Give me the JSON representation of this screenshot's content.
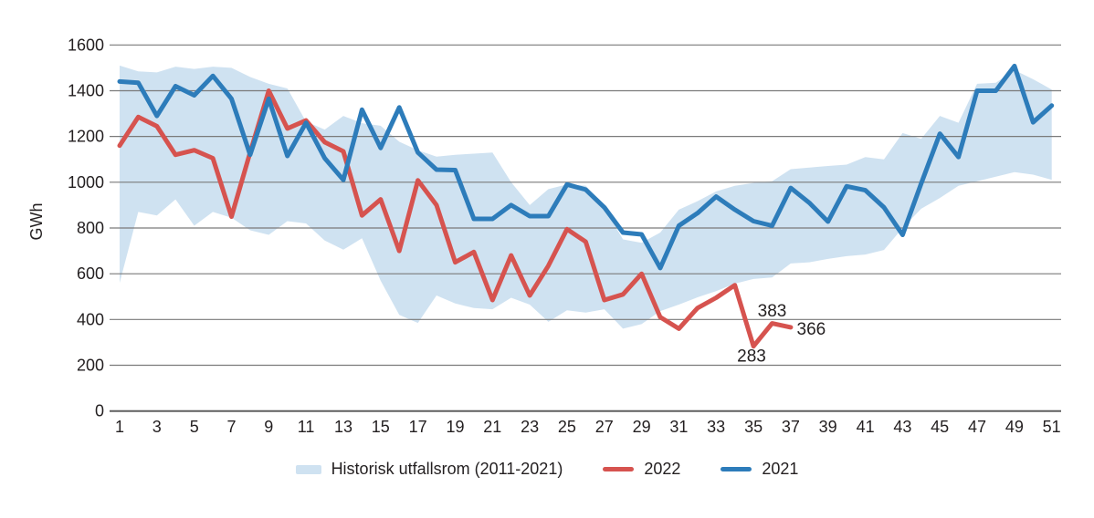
{
  "axes": {
    "y_label": "GWh",
    "y_ticks": [
      0,
      200,
      400,
      600,
      800,
      1000,
      1200,
      1400,
      1600
    ],
    "x_ticks": [
      1,
      3,
      5,
      7,
      9,
      11,
      13,
      15,
      17,
      19,
      21,
      23,
      25,
      27,
      29,
      31,
      33,
      35,
      37,
      39,
      41,
      43,
      45,
      47,
      49,
      51
    ]
  },
  "legend": {
    "items": [
      {
        "label": "Historisk utfallsrom (2011-2021)",
        "swatch": "band"
      },
      {
        "label": "2022",
        "swatch": "line-red"
      },
      {
        "label": "2021",
        "swatch": "line-blue"
      }
    ]
  },
  "colors": {
    "band": "#cfe2f1",
    "red_2022": "#d6534f",
    "blue_2021": "#2d7cba",
    "gridline": "#7a7a7a",
    "zero_line": "#5f5f5f",
    "text": "#231f20"
  },
  "chart_data": {
    "type": "line",
    "title": "",
    "xlabel": "",
    "ylabel": "GWh",
    "ylim": [
      0,
      1600
    ],
    "xlim": [
      1,
      51
    ],
    "grid": "horizontal",
    "legend_position": "bottom-center",
    "x": [
      1,
      2,
      3,
      4,
      5,
      6,
      7,
      8,
      9,
      10,
      11,
      12,
      13,
      14,
      15,
      16,
      17,
      18,
      19,
      20,
      21,
      22,
      23,
      24,
      25,
      26,
      27,
      28,
      29,
      30,
      31,
      32,
      33,
      34,
      35,
      36,
      37,
      38,
      39,
      40,
      41,
      42,
      43,
      44,
      45,
      46,
      47,
      48,
      49,
      50,
      51
    ],
    "series": [
      {
        "name": "Historisk utfallsrom (2011-2021)",
        "type": "band",
        "color": "#cfe2f1",
        "upper": [
          1510,
          1485,
          1480,
          1505,
          1495,
          1505,
          1500,
          1460,
          1430,
          1410,
          1265,
          1230,
          1290,
          1258,
          1247,
          1177,
          1140,
          1112,
          1120,
          1125,
          1130,
          1000,
          900,
          970,
          990,
          985,
          890,
          750,
          735,
          780,
          880,
          917,
          960,
          984,
          997,
          1004,
          1057,
          1064,
          1071,
          1077,
          1110,
          1100,
          1215,
          1190,
          1290,
          1260,
          1430,
          1435,
          1490,
          1450,
          1405
        ],
        "lower": [
          560,
          870,
          855,
          925,
          810,
          870,
          845,
          790,
          770,
          830,
          820,
          745,
          705,
          755,
          570,
          420,
          385,
          505,
          470,
          450,
          445,
          495,
          465,
          390,
          440,
          430,
          445,
          360,
          380,
          437,
          465,
          497,
          524,
          557,
          577,
          584,
          645,
          650,
          665,
          677,
          684,
          704,
          800,
          884,
          931,
          984,
          1004,
          1024,
          1044,
          1033,
          1011
        ]
      },
      {
        "name": "2022",
        "type": "line",
        "color": "#d6534f",
        "values": [
          1160,
          1285,
          1245,
          1120,
          1140,
          1105,
          850,
          1130,
          1400,
          1235,
          1270,
          1175,
          1135,
          855,
          925,
          700,
          1008,
          900,
          650,
          695,
          485,
          680,
          505,
          635,
          795,
          740,
          485,
          510,
          600,
          410,
          360,
          450,
          495,
          550,
          283,
          383,
          366
        ]
      },
      {
        "name": "2021",
        "type": "line",
        "color": "#2d7cba",
        "values": [
          1440,
          1435,
          1290,
          1420,
          1380,
          1465,
          1365,
          1120,
          1365,
          1115,
          1260,
          1105,
          1010,
          1317,
          1150,
          1327,
          1130,
          1055,
          1053,
          840,
          840,
          900,
          852,
          852,
          990,
          968,
          890,
          780,
          772,
          625,
          810,
          865,
          937,
          880,
          830,
          810,
          975,
          910,
          828,
          982,
          965,
          890,
          770,
          995,
          1212,
          1110,
          1400,
          1400,
          1508,
          1262,
          1335
        ]
      }
    ],
    "annotations": [
      {
        "text": "283",
        "week": 34.9,
        "value": 240
      },
      {
        "text": "383",
        "week": 36.0,
        "value": 437
      },
      {
        "text": "366",
        "week": 38.1,
        "value": 358
      }
    ]
  }
}
